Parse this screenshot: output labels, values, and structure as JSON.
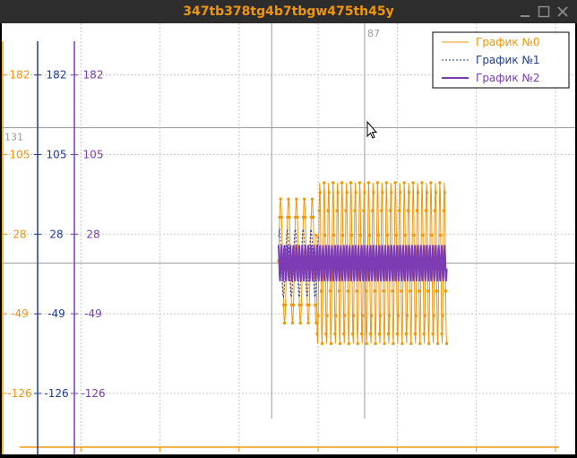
{
  "window": {
    "title": "347tb378tg4b7tbgw475th45y"
  },
  "cursor_readout": {
    "x": "87",
    "y": "131"
  },
  "colors": {
    "series0": "#f0960a",
    "series1": "#1e3c96",
    "series2": "#7d3cb4",
    "grid": "#c8c8c8",
    "crosshair": "#9a9a9a",
    "title": "#f0960a",
    "titlebar": "#2d2d2d"
  },
  "chart_data": {
    "type": "line",
    "grid": true,
    "legend_position": "top-right",
    "xlim": [
      -280,
      300
    ],
    "ylim": [
      -185,
      232
    ],
    "x_ticks": [
      -200,
      -120,
      -40,
      40,
      120,
      200,
      280
    ],
    "y_ticks": [
      182,
      105,
      28,
      -49,
      -126
    ],
    "y_axes_count": 3,
    "crosshair": {
      "x": 87,
      "y": 131
    },
    "series": [
      {
        "name": "График №0",
        "style": "solid",
        "marker": "square",
        "segments": [
          {
            "x_start": 0,
            "x_end": 38,
            "amplitude": 60,
            "center": 2,
            "period": 8
          },
          {
            "x_start": 38,
            "x_end": 170,
            "amplitude": 79,
            "center": 0,
            "period": 4.5
          }
        ]
      },
      {
        "name": "График №1",
        "style": "dashed",
        "marker": "none",
        "segments": [
          {
            "x_start": 0,
            "x_end": 40,
            "amplitude": 33,
            "center": 0,
            "period": 8
          }
        ]
      },
      {
        "name": "График №2",
        "style": "solid",
        "marker": "none",
        "segments": [
          {
            "x_start": 0,
            "x_end": 170,
            "amplitude": 18,
            "center": 0,
            "period": 3
          }
        ]
      }
    ]
  }
}
